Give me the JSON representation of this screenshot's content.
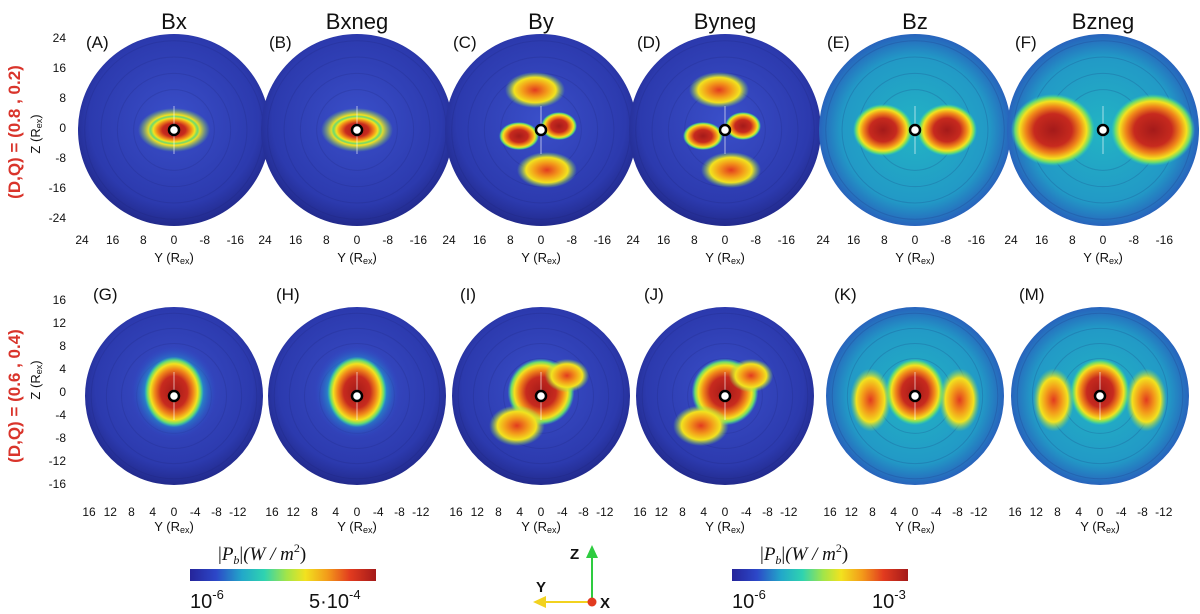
{
  "figure": {
    "columns": [
      "Bx",
      "Bxneg",
      "By",
      "Byneg",
      "Bz",
      "Bzneg"
    ]
  },
  "chart_data": [
    {
      "type": "heatmap",
      "row_label": "(D,Q) = (0.8 , 0.2)",
      "panel_labels": [
        "(A)",
        "(B)",
        "(C)",
        "(D)",
        "(E)",
        "(F)"
      ],
      "xlabel": "Y (R",
      "xlabel_sub": "ex",
      "ylabel": "Z (R",
      "ylabel_sub": "ex",
      "x_ticks": [
        "24",
        "16",
        "8",
        "0",
        "-8",
        "-16"
      ],
      "y_ticks": [
        "24",
        "16",
        "8",
        "0",
        "-8",
        "-16",
        "-24"
      ],
      "xlim": [
        24,
        -24
      ],
      "ylim": [
        -24,
        24
      ]
    },
    {
      "type": "heatmap",
      "row_label": "(D,Q) = (0.6 , 0.4)",
      "panel_labels": [
        "(G)",
        "(H)",
        "(I)",
        "(J)",
        "(K)",
        "(M)"
      ],
      "xlabel": "Y (R",
      "xlabel_sub": "ex",
      "ylabel": "Z (R",
      "ylabel_sub": "ex",
      "x_ticks": [
        "16",
        "12",
        "8",
        "4",
        "0",
        "-4",
        "-8",
        "-12"
      ],
      "y_ticks": [
        "16",
        "12",
        "8",
        "4",
        "0",
        "-4",
        "-8",
        "-12",
        "-16"
      ],
      "xlim": [
        16,
        -16
      ],
      "ylim": [
        -16,
        16
      ]
    }
  ],
  "colorbars": [
    {
      "title_P": "P",
      "title_sub": "b",
      "title_units": "(W / m",
      "title_sq": "2",
      "title_close": ")",
      "min_base": "10",
      "min_exp": "-6",
      "max_base": "5·10",
      "max_exp": "-4"
    },
    {
      "title_P": "P",
      "title_sub": "b",
      "title_units": "(W / m",
      "title_sq": "2",
      "title_close": ")",
      "min_base": "10",
      "min_exp": "-6",
      "max_base": "10",
      "max_exp": "-3"
    }
  ],
  "triad": {
    "z": "Z",
    "y": "Y",
    "x": "X"
  },
  "colors": {
    "stops": [
      "#25249a",
      "#2c47c8",
      "#22a8c9",
      "#2fd3b0",
      "#a3e548",
      "#f2e21f",
      "#f39a1a",
      "#e23b1f",
      "#a41a1a"
    ],
    "row_label": "#d9342b"
  }
}
